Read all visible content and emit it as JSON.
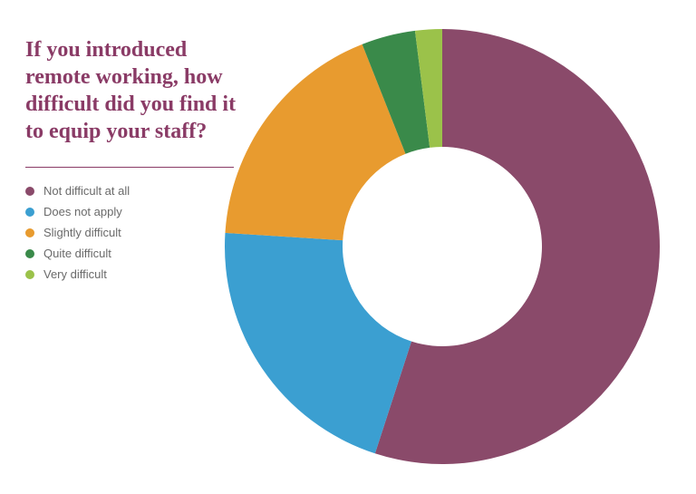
{
  "title": "If you introduced remote working, how difficult did you find it to equip your staff?",
  "chart": {
    "type": "donut",
    "background": "#ffffff",
    "outer_radius": 240,
    "inner_radius": 110,
    "start_angle_deg": 0,
    "title_color": "#8a3b66",
    "title_fontsize": 24,
    "legend_fontsize": 13,
    "legend_text_color": "#6a6a6a",
    "divider_color": "#8a3b66",
    "series": [
      {
        "label": "Not difficult at all",
        "value": 55,
        "color": "#8a4a6a"
      },
      {
        "label": "Does not apply",
        "value": 21,
        "color": "#3b9fd1"
      },
      {
        "label": "Slightly difficult",
        "value": 18,
        "color": "#e89b2f"
      },
      {
        "label": "Quite difficult",
        "value": 4,
        "color": "#3a8a4a"
      },
      {
        "label": "Very difficult",
        "value": 2,
        "color": "#9bc24a"
      }
    ]
  }
}
